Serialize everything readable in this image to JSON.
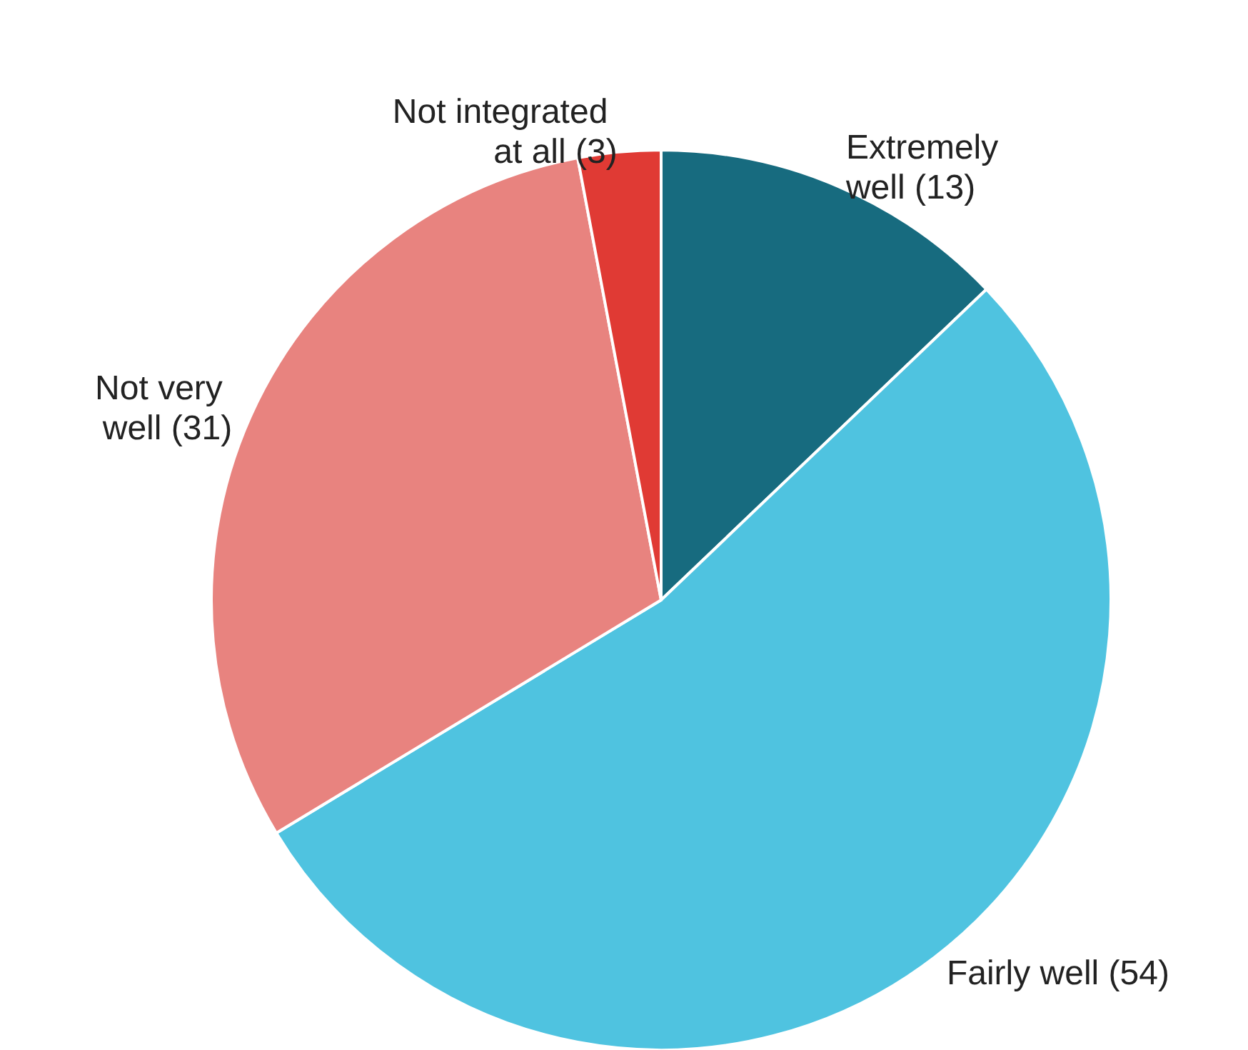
{
  "chart_data": {
    "type": "pie",
    "categories": [
      "Extremely well",
      "Fairly well",
      "Not very well",
      "Not integrated at all"
    ],
    "values": [
      13,
      54,
      31,
      3
    ],
    "colors": [
      "#176b7f",
      "#4fc3e0",
      "#e8837f",
      "#e03a34"
    ],
    "value_labels": [
      "(13)",
      "(54)",
      "(31)",
      "(3)"
    ],
    "legend": false
  }
}
